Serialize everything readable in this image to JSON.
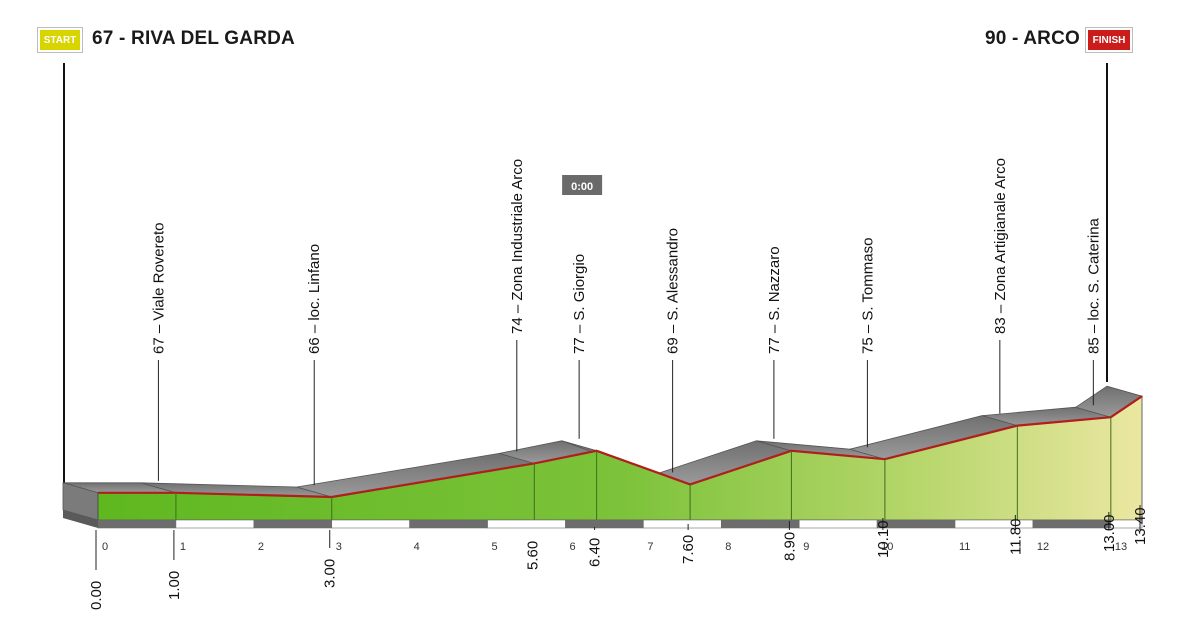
{
  "start": {
    "badge": "START",
    "label": "67 - RIVA DEL GARDA"
  },
  "finish": {
    "badge": "FINISH",
    "label": "90 - ARCO"
  },
  "colors": {
    "start_badge": "#d8d400",
    "finish_badge": "#cc1b1b",
    "profile_green": "#6fbf2a",
    "profile_yellow": "#e8e49a",
    "profile_line": "#b01e1e",
    "side": "#808080"
  },
  "chart_data": {
    "type": "area",
    "title": "",
    "xlabel": "",
    "ylabel": "",
    "x_unit": "km",
    "y_unit": "m",
    "xlim": [
      0,
      13.4
    ],
    "points": [
      {
        "km": 0.0,
        "alt": 67
      },
      {
        "km": 1.0,
        "alt": 67
      },
      {
        "km": 3.0,
        "alt": 66
      },
      {
        "km": 5.6,
        "alt": 74
      },
      {
        "km": 6.4,
        "alt": 77
      },
      {
        "km": 7.6,
        "alt": 69
      },
      {
        "km": 8.9,
        "alt": 77
      },
      {
        "km": 10.1,
        "alt": 75
      },
      {
        "km": 11.8,
        "alt": 83
      },
      {
        "km": 13.0,
        "alt": 85
      },
      {
        "km": 13.4,
        "alt": 90
      }
    ],
    "waypoints": [
      {
        "km": 1.0,
        "label": "67 – Viale Rovereto"
      },
      {
        "km": 3.0,
        "label": "66 – loc. Linfano"
      },
      {
        "km": 5.6,
        "label": "74 – Zona Industriale Arco"
      },
      {
        "km": 6.4,
        "label": "77 – S. Giorgio"
      },
      {
        "km": 7.6,
        "label": "69 – S. Alessandro"
      },
      {
        "km": 8.9,
        "label": "77 – S. Nazzaro"
      },
      {
        "km": 10.1,
        "label": "75 – S. Tommaso"
      },
      {
        "km": 11.8,
        "label": "83 – Zona Artigianale Arco"
      },
      {
        "km": 13.0,
        "label": "85 – loc. S. Caterina"
      }
    ],
    "distance_labels": [
      "0.00",
      "1.00",
      "3.00",
      "5.60",
      "6.40",
      "7.60",
      "8.90",
      "10.10",
      "11.80",
      "13.00",
      "13.40"
    ],
    "km_ticks": [
      "0",
      "1",
      "2",
      "3",
      "4",
      "5",
      "6",
      "7",
      "8",
      "9",
      "10",
      "11",
      "12",
      "13"
    ],
    "time_marker": {
      "km": 6.4,
      "label": "0:00"
    }
  }
}
